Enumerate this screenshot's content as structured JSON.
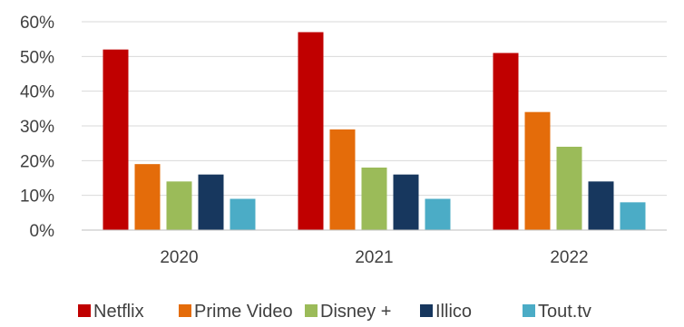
{
  "chart_data": {
    "type": "bar",
    "title": "",
    "xlabel": "",
    "ylabel": "",
    "categories": [
      "2020",
      "2021",
      "2022"
    ],
    "ylim": [
      0,
      60
    ],
    "yticks": [
      0,
      10,
      20,
      30,
      40,
      50,
      60
    ],
    "ytick_labels": [
      "0%",
      "10%",
      "20%",
      "30%",
      "40%",
      "50%",
      "60%"
    ],
    "grid": true,
    "legend_position": "bottom",
    "series": [
      {
        "name": "Netflix",
        "color": "#c00000",
        "values": [
          52,
          57,
          51
        ]
      },
      {
        "name": "Prime Video",
        "color": "#e46c0a",
        "values": [
          19,
          29,
          34
        ]
      },
      {
        "name": "Disney +",
        "color": "#9bbb59",
        "values": [
          14,
          18,
          24
        ]
      },
      {
        "name": "Illico",
        "color": "#17375e",
        "values": [
          16,
          16,
          14
        ]
      },
      {
        "name": "Tout.tv",
        "color": "#4bacc6",
        "values": [
          9,
          9,
          8
        ]
      }
    ]
  }
}
